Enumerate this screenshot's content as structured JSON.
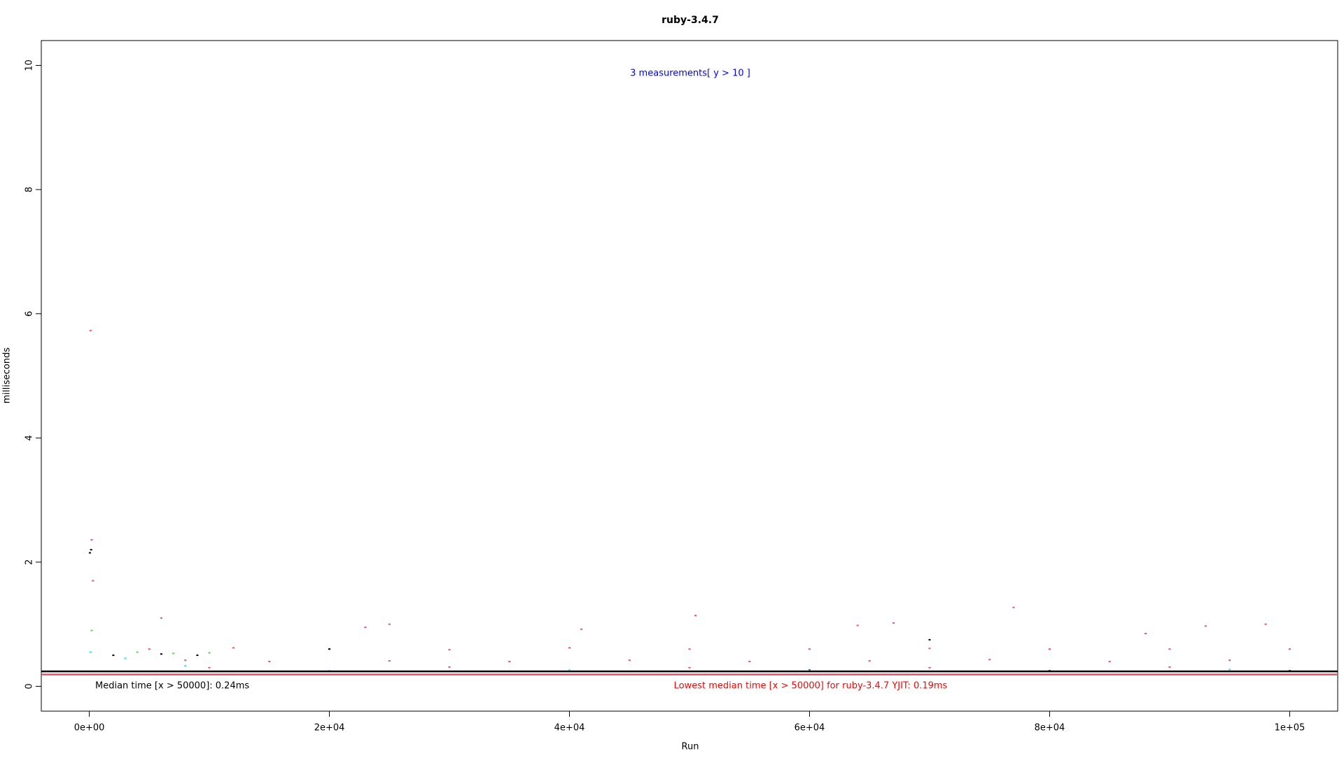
{
  "chart_data": {
    "type": "scatter",
    "title": "ruby-3.4.7",
    "x_label": "Run",
    "y_label": "milliseconds",
    "xlim": [
      -4000,
      104000
    ],
    "ylim": [
      -0.4,
      10.4
    ],
    "xticks": [
      {
        "value": 0,
        "label": "0e+00"
      },
      {
        "value": 20000,
        "label": "2e+04"
      },
      {
        "value": 40000,
        "label": "4e+04"
      },
      {
        "value": 60000,
        "label": "6e+04"
      },
      {
        "value": 80000,
        "label": "8e+04"
      },
      {
        "value": 100000,
        "label": "1e+05"
      }
    ],
    "yticks": [
      0,
      2,
      4,
      6,
      8,
      10
    ],
    "series": [
      {
        "color": "#DF536B",
        "x": [
          100,
          200,
          300,
          5000,
          12000,
          20000,
          30000,
          40000,
          50000,
          60000,
          70000,
          80000,
          90000,
          100000,
          8000,
          15000,
          25000,
          35000,
          45000,
          55000,
          65000,
          75000,
          85000,
          95000,
          10000,
          30000,
          50000,
          70000,
          90000,
          6000,
          23000,
          25000,
          41000,
          50500,
          64000,
          67000,
          77000,
          88000,
          93000,
          98000
        ],
        "values": [
          5.73,
          2.36,
          1.7,
          0.6,
          0.62,
          0.6,
          0.59,
          0.62,
          0.6,
          0.6,
          0.61,
          0.6,
          0.6,
          0.6,
          0.42,
          0.4,
          0.41,
          0.4,
          0.42,
          0.4,
          0.41,
          0.43,
          0.4,
          0.42,
          0.3,
          0.31,
          0.3,
          0.3,
          0.31,
          1.1,
          0.95,
          1.0,
          0.92,
          1.14,
          0.98,
          1.02,
          1.27,
          0.85,
          0.97,
          1.0
        ]
      },
      {
        "color": "#000000",
        "x": [
          50,
          150,
          2000,
          6000,
          9000,
          40000,
          60000,
          80000,
          100000,
          20000,
          70000
        ],
        "values": [
          2.15,
          2.2,
          0.5,
          0.52,
          0.5,
          0.25,
          0.26,
          0.25,
          0.25,
          0.6,
          0.75
        ]
      },
      {
        "color": "#28E2E5",
        "x": [
          100,
          3000,
          8000,
          20000,
          40000,
          60000,
          80000,
          95000
        ],
        "values": [
          0.55,
          0.45,
          0.33,
          0.25,
          0.26,
          0.25,
          0.24,
          0.27
        ]
      },
      {
        "color": "#61D04F",
        "x": [
          200,
          4000,
          7000,
          10000
        ],
        "values": [
          0.9,
          0.55,
          0.53,
          0.54
        ]
      }
    ],
    "hlines": [
      {
        "value": 0.24,
        "color": "#000000"
      },
      {
        "value": 0.19,
        "color": "#DF536B"
      }
    ],
    "annotations": [
      {
        "text": "3 measurements[ y > 10 ]",
        "color": "#0000FF"
      },
      {
        "text": "Median time [x > 50000]: 0.24ms",
        "color": "#000000"
      },
      {
        "text": "Lowest median time [x > 50000] for ruby-3.4.7 YJIT: 0.19ms",
        "color": "#FF0000"
      }
    ]
  }
}
